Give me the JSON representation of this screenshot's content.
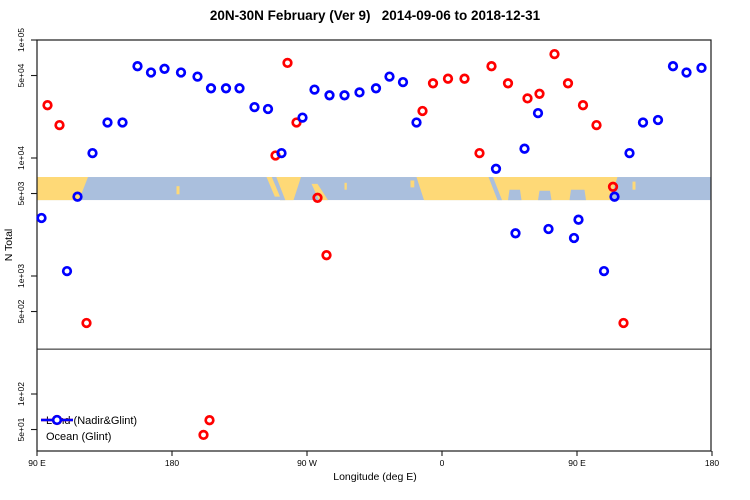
{
  "chart_data": {
    "type": "scatter",
    "title": "20N-30N February (Ver 9)   2014-09-06 to 2018-12-31",
    "xlabel": "Longitude (deg E)",
    "ylabel": "N Total",
    "y_scale": "log",
    "xlim_deg": [
      90,
      540
    ],
    "ylim": [
      33,
      100000
    ],
    "x_ticks": [
      {
        "label": "90 E",
        "deg": 90
      },
      {
        "label": "180",
        "deg": 180
      },
      {
        "label": "90 W",
        "deg": 270
      },
      {
        "label": "0",
        "deg": 360
      },
      {
        "label": "90 E",
        "deg": 450
      },
      {
        "label": "180",
        "deg": 540
      }
    ],
    "y_ticks": [
      {
        "label": "1e+05",
        "value": 100000
      },
      {
        "label": "5e+04",
        "value": 50000
      },
      {
        "label": "1e+04",
        "value": 10000
      },
      {
        "label": "5e+03",
        "value": 5000
      },
      {
        "label": "1e+03",
        "value": 1000
      },
      {
        "label": "5e+02",
        "value": 500
      },
      {
        "label": "1e+02",
        "value": 100
      },
      {
        "label": "5e+01",
        "value": 50
      }
    ],
    "reference_line_n": 240,
    "series": [
      {
        "name": "Land (Nadir&Glint)",
        "color": "#ff0000",
        "points": [
          {
            "lon": 97,
            "n": 28000
          },
          {
            "lon": 105,
            "n": 19000
          },
          {
            "lon": 123,
            "n": 400
          },
          {
            "lon": 201,
            "n": 45
          },
          {
            "lon": 205,
            "n": 60
          },
          {
            "lon": 249,
            "n": 10500
          },
          {
            "lon": 257,
            "n": 64000
          },
          {
            "lon": 263,
            "n": 20000
          },
          {
            "lon": 277,
            "n": 4600
          },
          {
            "lon": 283,
            "n": 1500
          },
          {
            "lon": 347,
            "n": 25000
          },
          {
            "lon": 354,
            "n": 43000
          },
          {
            "lon": 364,
            "n": 47000
          },
          {
            "lon": 375,
            "n": 47000
          },
          {
            "lon": 385,
            "n": 11000
          },
          {
            "lon": 393,
            "n": 60000
          },
          {
            "lon": 404,
            "n": 43000
          },
          {
            "lon": 417,
            "n": 32000
          },
          {
            "lon": 425,
            "n": 35000
          },
          {
            "lon": 435,
            "n": 76000
          },
          {
            "lon": 444,
            "n": 43000
          },
          {
            "lon": 454,
            "n": 28000
          },
          {
            "lon": 463,
            "n": 19000
          },
          {
            "lon": 474,
            "n": 5700
          },
          {
            "lon": 481,
            "n": 400
          }
        ]
      },
      {
        "name": "Ocean (Glint)",
        "color": "#0000ff",
        "points": [
          {
            "lon": 93,
            "n": 3100
          },
          {
            "lon": 110,
            "n": 1100
          },
          {
            "lon": 117,
            "n": 4700
          },
          {
            "lon": 127,
            "n": 11000
          },
          {
            "lon": 137,
            "n": 20000
          },
          {
            "lon": 147,
            "n": 20000
          },
          {
            "lon": 157,
            "n": 60000
          },
          {
            "lon": 166,
            "n": 53000
          },
          {
            "lon": 175,
            "n": 57000
          },
          {
            "lon": 186,
            "n": 53000
          },
          {
            "lon": 197,
            "n": 49000
          },
          {
            "lon": 206,
            "n": 39000
          },
          {
            "lon": 216,
            "n": 39000
          },
          {
            "lon": 225,
            "n": 39000
          },
          {
            "lon": 235,
            "n": 27000
          },
          {
            "lon": 244,
            "n": 26000
          },
          {
            "lon": 253,
            "n": 11000
          },
          {
            "lon": 267,
            "n": 22000
          },
          {
            "lon": 275,
            "n": 38000
          },
          {
            "lon": 285,
            "n": 34000
          },
          {
            "lon": 295,
            "n": 34000
          },
          {
            "lon": 305,
            "n": 36000
          },
          {
            "lon": 316,
            "n": 39000
          },
          {
            "lon": 325,
            "n": 49000
          },
          {
            "lon": 334,
            "n": 44000
          },
          {
            "lon": 343,
            "n": 20000
          },
          {
            "lon": 396,
            "n": 8100
          },
          {
            "lon": 409,
            "n": 2300
          },
          {
            "lon": 415,
            "n": 12000
          },
          {
            "lon": 424,
            "n": 24000
          },
          {
            "lon": 431,
            "n": 2500
          },
          {
            "lon": 448,
            "n": 2100
          },
          {
            "lon": 451,
            "n": 3000
          },
          {
            "lon": 468,
            "n": 1100
          },
          {
            "lon": 475,
            "n": 4700
          },
          {
            "lon": 485,
            "n": 11000
          },
          {
            "lon": 494,
            "n": 20000
          },
          {
            "lon": 504,
            "n": 21000
          },
          {
            "lon": 514,
            "n": 60000
          },
          {
            "lon": 523,
            "n": 53000
          },
          {
            "lon": 533,
            "n": 58000
          }
        ]
      }
    ],
    "map_band": {
      "n_top": 6900,
      "n_bottom": 4400,
      "ocean_color": "#aabfdd",
      "land_color": "#fed977",
      "land_polys": [
        [
          [
            90,
            0
          ],
          [
            124,
            0
          ],
          [
            118,
            1
          ],
          [
            90,
            1
          ]
        ],
        [
          [
            183,
            0.4
          ],
          [
            185,
            0.4
          ],
          [
            185,
            0.75
          ],
          [
            183,
            0.75
          ]
        ],
        [
          [
            247,
            0
          ],
          [
            266,
            0
          ],
          [
            261,
            1
          ],
          [
            252,
            1
          ]
        ],
        [
          [
            273,
            0.3
          ],
          [
            277,
            0.3
          ],
          [
            284,
            1
          ],
          [
            278,
            1
          ]
        ],
        [
          [
            295,
            0.25
          ],
          [
            296.5,
            0.25
          ],
          [
            296.5,
            0.55
          ],
          [
            295,
            0.55
          ]
        ],
        [
          [
            339,
            0.15
          ],
          [
            341.5,
            0.15
          ],
          [
            341.5,
            0.45
          ],
          [
            339,
            0.45
          ]
        ],
        [
          [
            343,
            0
          ],
          [
            477,
            0
          ],
          [
            472,
            1
          ],
          [
            348,
            1
          ]
        ],
        [
          [
            487,
            0.2
          ],
          [
            489,
            0.2
          ],
          [
            489,
            0.55
          ],
          [
            487,
            0.55
          ]
        ]
      ],
      "water_overlays": [
        [
          [
            246,
            0
          ],
          [
            249.5,
            0
          ],
          [
            255.5,
            1
          ],
          [
            252,
            1
          ]
        ],
        [
          [
            391,
            0
          ],
          [
            394,
            0
          ],
          [
            400,
            1
          ],
          [
            397,
            1
          ]
        ],
        [
          [
            405,
            0.55
          ],
          [
            412,
            0.55
          ],
          [
            413,
            1
          ],
          [
            404,
            1
          ]
        ],
        [
          [
            425,
            0.6
          ],
          [
            432,
            0.6
          ],
          [
            433,
            1
          ],
          [
            424,
            1
          ]
        ],
        [
          [
            446,
            0.55
          ],
          [
            455,
            0.55
          ],
          [
            456,
            1
          ],
          [
            445,
            1
          ]
        ]
      ],
      "land_polys_post": [
        [
          [
            243,
            0
          ],
          [
            246.5,
            0
          ],
          [
            252,
            0.85
          ],
          [
            248.5,
            0.85
          ]
        ]
      ]
    },
    "legend": {
      "items": [
        {
          "label": "Land (Nadir&Glint)",
          "color": "#ff0000"
        },
        {
          "label": "Ocean (Glint)",
          "color": "#0000ff"
        }
      ]
    }
  }
}
